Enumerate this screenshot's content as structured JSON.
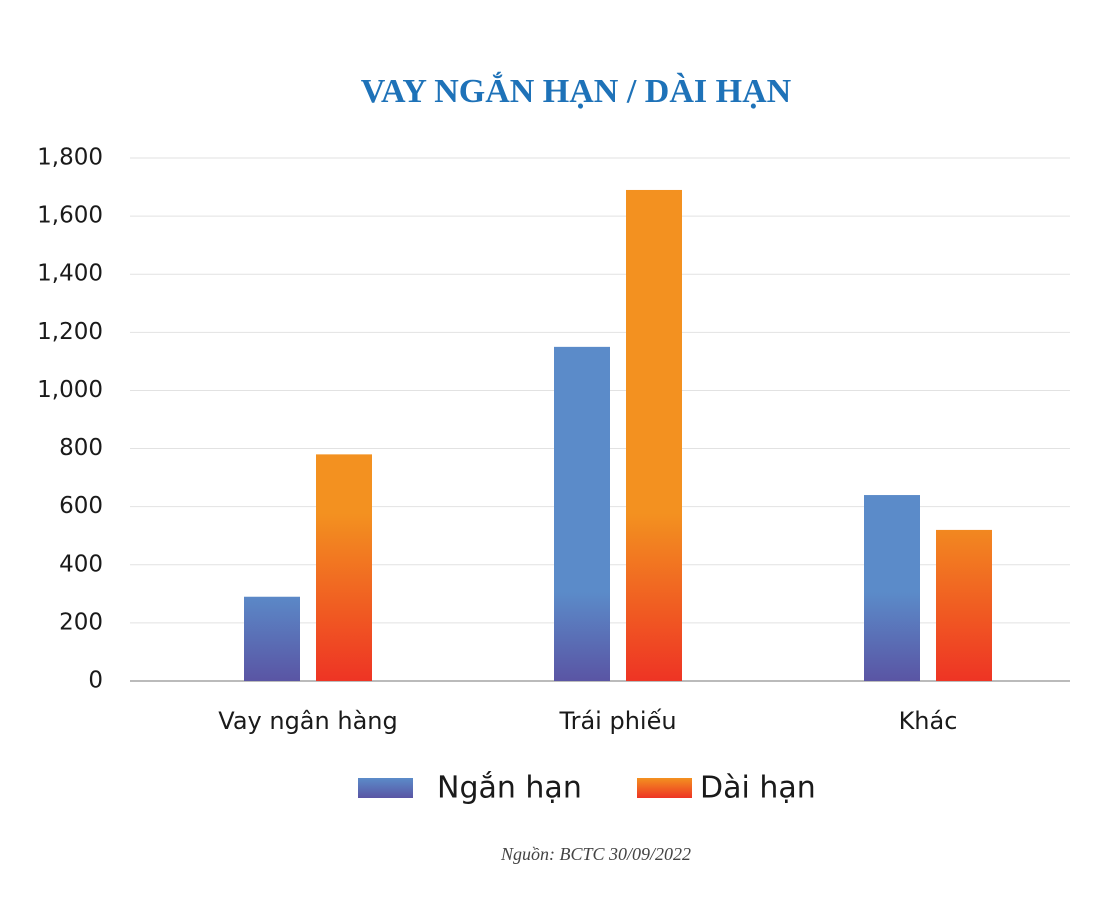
{
  "chart_data": {
    "type": "bar",
    "title": "VAY NGẮN HẠN / DÀI HẠN",
    "categories": [
      "Vay ngân hàng",
      "Trái phiếu",
      "Khác"
    ],
    "series": [
      {
        "name": "Ngắn hạn",
        "color": "#5b8bc9",
        "values": [
          290,
          1150,
          640
        ]
      },
      {
        "name": "Dài hạn",
        "color": "#f39120",
        "values": [
          780,
          1690,
          520
        ]
      }
    ],
    "ylim": [
      0,
      1800
    ],
    "yticks": [
      0,
      200,
      400,
      600,
      800,
      {
        "value": 1000,
        "label": "1,000"
      },
      {
        "value": 1200,
        "label": "1,200"
      },
      {
        "value": 1400,
        "label": "1,400"
      },
      {
        "value": 1600,
        "label": "1,600"
      },
      {
        "value": 1800,
        "label": "1,800"
      }
    ],
    "grid": true,
    "legend": "bottom",
    "source": "Nguồn: BCTC 30/09/2022"
  }
}
